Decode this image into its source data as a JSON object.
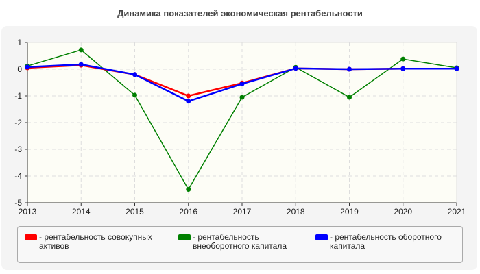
{
  "chart_data": {
    "type": "line",
    "title": "Динамика показателей экономическая рентабельности",
    "x": [
      "2013",
      "2014",
      "2015",
      "2016",
      "2017",
      "2018",
      "2019",
      "2020",
      "2021"
    ],
    "ylim": [
      -5,
      1
    ],
    "yticks": [
      "1",
      "0",
      "-1",
      "-2",
      "-3",
      "-4",
      "-5"
    ],
    "grid": true,
    "legend_position": "bottom",
    "series": [
      {
        "name": "- рентабельность совокупных активов",
        "color": "#ff0000",
        "values": [
          0.05,
          0.15,
          -0.2,
          -1.0,
          -0.52,
          0.03,
          0.0,
          0.02,
          0.02
        ]
      },
      {
        "name": "- рентабельность внеоборотного капитала",
        "color": "#008000",
        "values": [
          0.12,
          0.72,
          -0.97,
          -4.5,
          -1.05,
          0.07,
          -1.05,
          0.38,
          0.05
        ]
      },
      {
        "name": "- рентабельность оборотного капитала",
        "color": "#0000ff",
        "values": [
          0.08,
          0.18,
          -0.2,
          -1.2,
          -0.55,
          0.03,
          0.0,
          0.02,
          0.02
        ]
      }
    ]
  }
}
